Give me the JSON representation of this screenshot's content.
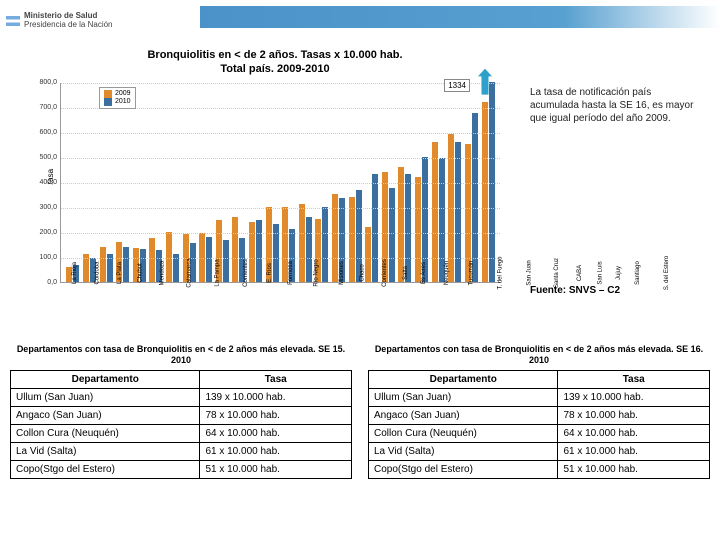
{
  "logo": {
    "line1": "Ministerio de",
    "line2": "Salud",
    "line3": "Presidencia de la Nación"
  },
  "chart": {
    "title": "Bronquiolitis en < de 2 años. Tasas x 10.000 hab.\nTotal país. 2009-2010",
    "ylabel": "tasa",
    "ylim": [
      0,
      800
    ],
    "ytick_step": 100,
    "legend": {
      "a": "2009",
      "b": "2010"
    },
    "colors": {
      "b2009": "#e08a2c",
      "b2010": "#3a6fa0",
      "grid": "#cccccc"
    },
    "callout": "1334",
    "categories": [
      "La Rioja",
      "Córdoba",
      "La Plata",
      "Chubut",
      "Mendoza",
      "Catamarca",
      "La Pampa",
      "Corrientes",
      "E. Ríos",
      "Formosa",
      "Río Negro",
      "Misiones",
      "Chaco",
      "Corrientes",
      "Salta",
      "Bs Aires",
      "Neuquén",
      "Tucumán",
      "T. del Fuego",
      "San Juan",
      "Santa Cruz",
      "CABA",
      "San Luis",
      "Jujuy",
      "Santiago",
      "S. del Estero"
    ],
    "series_2009": [
      60,
      110,
      140,
      160,
      135,
      175,
      200,
      190,
      195,
      245,
      260,
      240,
      300,
      300,
      310,
      250,
      350,
      340,
      220,
      440,
      460,
      420,
      560,
      590,
      550,
      720
    ],
    "series_2010": [
      65,
      95,
      110,
      140,
      130,
      125,
      110,
      155,
      180,
      165,
      175,
      245,
      230,
      210,
      260,
      300,
      335,
      365,
      430,
      375,
      430,
      500,
      495,
      560,
      675,
      800
    ]
  },
  "side_text": "La tasa de notificación país acumulada hasta la SE 16, es mayor que igual período del año 2009.",
  "fuente": "Fuente: SNVS – C2",
  "tables": [
    {
      "title": "Departamentos con tasa de Bronquiolitis en < de 2 años más elevada. SE 15. 2010",
      "headers": [
        "Departamento",
        "Tasa"
      ],
      "rows": [
        [
          "Ullum (San Juan)",
          "139 x 10.000 hab."
        ],
        [
          "Angaco (San Juan)",
          "78 x 10.000 hab."
        ],
        [
          "Collon Cura (Neuquén)",
          "64 x 10.000 hab."
        ],
        [
          "La Vid (Salta)",
          "61 x 10.000 hab."
        ],
        [
          "Copo(Stgo del Estero)",
          "51 x 10.000 hab."
        ]
      ]
    },
    {
      "title": "Departamentos con tasa de Bronquiolitis en < de 2 años más elevada. SE 16. 2010",
      "headers": [
        "Departamento",
        "Tasa"
      ],
      "rows": [
        [
          "Ullum (San Juan)",
          "139 x 10.000 hab."
        ],
        [
          "Angaco (San Juan)",
          "78 x 10.000 hab."
        ],
        [
          "Collon Cura (Neuquén)",
          "64 x 10.000 hab."
        ],
        [
          "La Vid (Salta)",
          "61 x 10.000 hab."
        ],
        [
          "Copo(Stgo del Estero)",
          "51 x 10.000 hab."
        ]
      ]
    }
  ]
}
